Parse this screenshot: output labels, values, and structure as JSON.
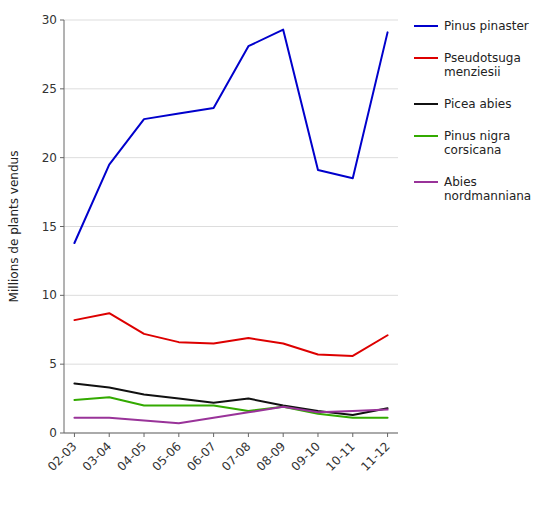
{
  "chart_data": {
    "type": "line",
    "categories": [
      "02-03",
      "03-04",
      "04-05",
      "05-06",
      "06-07",
      "07-08",
      "08-09",
      "09-10",
      "10-11",
      "11-12"
    ],
    "series": [
      {
        "name": "Pinus pinaster",
        "color": "#0000CC",
        "values": [
          13.8,
          19.5,
          22.8,
          23.2,
          23.6,
          28.1,
          29.3,
          19.1,
          18.5,
          29.1
        ]
      },
      {
        "name": "Pseudotsuga\nmenziesii",
        "color": "#DD0000",
        "values": [
          8.2,
          8.7,
          7.2,
          6.6,
          6.5,
          6.9,
          6.5,
          5.7,
          5.6,
          7.1
        ]
      },
      {
        "name": "Picea abies",
        "color": "#111111",
        "values": [
          3.6,
          3.3,
          2.8,
          2.5,
          2.2,
          2.5,
          2.0,
          1.6,
          1.3,
          1.8
        ]
      },
      {
        "name": "Pinus nigra\ncorsicana",
        "color": "#33AA00",
        "values": [
          2.4,
          2.6,
          2.0,
          2.0,
          2.0,
          1.6,
          1.9,
          1.4,
          1.1,
          1.1
        ]
      },
      {
        "name": "Abies\nnordmanniana",
        "color": "#993399",
        "values": [
          1.1,
          1.1,
          0.9,
          0.7,
          1.1,
          1.5,
          1.9,
          1.5,
          1.6,
          1.7
        ]
      }
    ],
    "ylabel": "Millions de plants vendus",
    "ylim": [
      0,
      30
    ],
    "yticks": [
      0,
      5,
      10,
      15,
      20,
      25,
      30
    ],
    "grid": true,
    "legend": "right"
  }
}
